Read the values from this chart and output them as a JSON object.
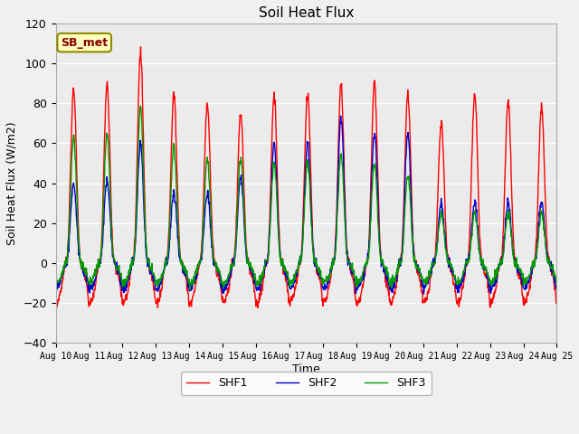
{
  "title": "Soil Heat Flux",
  "ylabel": "Soil Heat Flux (W/m2)",
  "xlabel": "Time",
  "ylim": [
    -40,
    120
  ],
  "yticks": [
    -40,
    -20,
    0,
    20,
    40,
    60,
    80,
    100,
    120
  ],
  "annotation_text": "SB_met",
  "annotation_color": "#8B0000",
  "annotation_bg": "#FFFFC0",
  "annotation_border": "#8B8B00",
  "legend_entries": [
    "SHF1",
    "SHF2",
    "SHF3"
  ],
  "line_colors": [
    "#FF0000",
    "#0000CC",
    "#009900"
  ],
  "plot_bg": "#EBEBEB",
  "fig_bg": "#F0F0F0",
  "n_days": 15,
  "points_per_day": 96,
  "shf1_peaks": [
    87,
    90,
    106,
    85,
    80,
    75,
    84,
    85,
    90,
    90,
    85,
    70,
    85,
    82,
    78
  ],
  "shf2_peaks": [
    40,
    42,
    60,
    35,
    35,
    43,
    60,
    60,
    73,
    65,
    65,
    30,
    30,
    30,
    30
  ],
  "shf3_peaks": [
    63,
    65,
    78,
    58,
    52,
    53,
    50,
    50,
    55,
    50,
    45,
    25,
    25,
    25,
    25
  ],
  "shf1_night": -20,
  "shf2_night": -13,
  "shf3_night": -10,
  "day_start": 0.28,
  "day_end": 0.8,
  "peak_sharpness": 3.5
}
